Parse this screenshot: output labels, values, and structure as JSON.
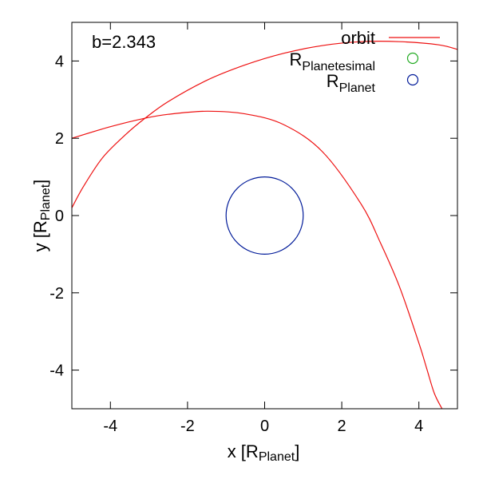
{
  "chart_data": {
    "type": "line",
    "annotation": "b=2.343",
    "xlabel": {
      "main": "x [R",
      "sub": "Planet",
      "end": "]"
    },
    "ylabel": {
      "main": "y [R",
      "sub": "Planet",
      "end": "]"
    },
    "xlim": [
      -5,
      5
    ],
    "ylim": [
      -5,
      5
    ],
    "xticks": [
      -4,
      -2,
      0,
      2,
      4
    ],
    "yticks": [
      -4,
      -2,
      0,
      2,
      4
    ],
    "grid": false,
    "legend_position": "top-right",
    "legend": [
      {
        "label_main": "orbit",
        "label_sub": "",
        "marker": "line",
        "color": "#ee1111"
      },
      {
        "label_main": "R",
        "label_sub": "Planetesimal",
        "marker": "circle",
        "color": "#22aa22"
      },
      {
        "label_main": "R",
        "label_sub": "Planet",
        "marker": "circle",
        "color": "#001a99"
      }
    ],
    "series": [
      {
        "name": "orbit",
        "color": "#ee1111",
        "segments": [
          {
            "x": [
              -5,
              -4,
              -3.1,
              -2.5,
              -1.5,
              -0.5,
              0.5,
              1.5,
              2.5,
              3.0,
              3.5,
              4.0,
              4.2,
              4.4,
              4.6
            ],
            "y": [
              2.0,
              2.3,
              2.52,
              2.62,
              2.7,
              2.63,
              2.35,
              1.65,
              0.3,
              -0.7,
              -1.85,
              -3.3,
              -3.95,
              -4.6,
              -5.0
            ]
          },
          {
            "x": [
              -5,
              -4.7,
              -4.2,
              -3.6,
              -3.1,
              -2.5,
              -1.5,
              -0.5,
              0.5,
              1.5,
              2.5,
              3.5,
              4.5,
              5.0
            ],
            "y": [
              0.2,
              0.75,
              1.5,
              2.1,
              2.52,
              2.95,
              3.5,
              3.9,
              4.2,
              4.4,
              4.5,
              4.5,
              4.42,
              4.3
            ]
          }
        ]
      }
    ],
    "planet": {
      "center": [
        0,
        0
      ],
      "radius": 1.0,
      "color": "#001a99"
    }
  }
}
